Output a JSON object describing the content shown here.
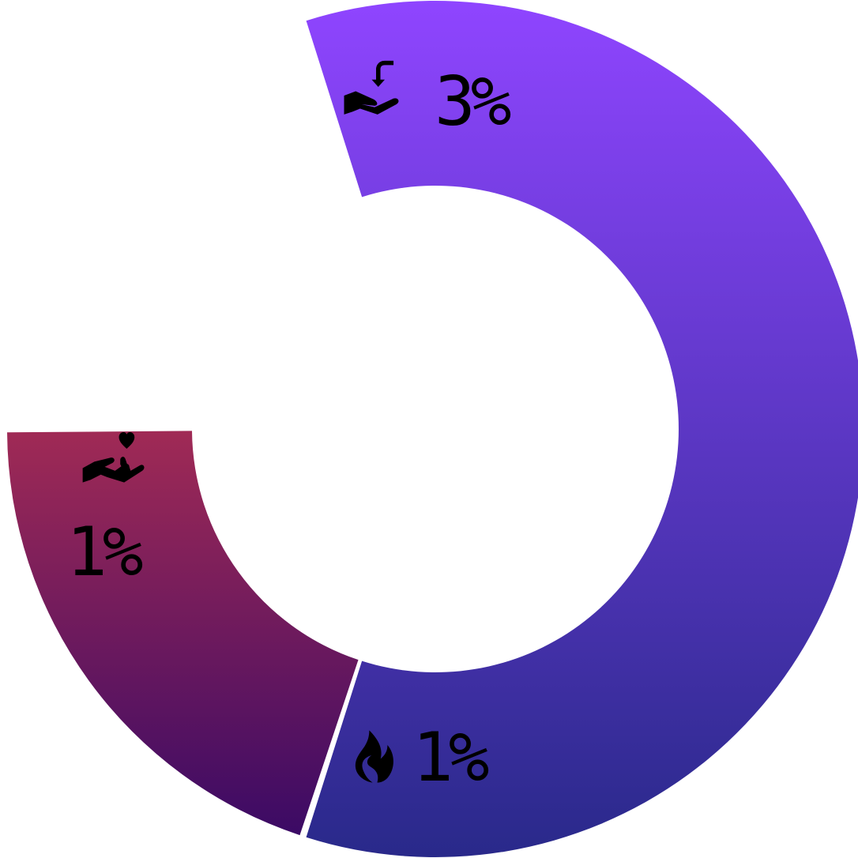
{
  "chart_data": {
    "type": "pie",
    "subtype": "donut",
    "segments": [
      {
        "value": 3,
        "label": "3%",
        "icon": "hand-receiving-return-icon",
        "color_top": "#8f45ff",
        "color_bottom": "#29298a"
      },
      {
        "value": 1,
        "label": "1%",
        "icon": "flame-icon",
        "color_top": "#a02a55",
        "color_bottom": "#3b0a65"
      },
      {
        "value": 1,
        "label": "1%",
        "icon": "hand-giving-heart-icon",
        "color_top": "#ffffff",
        "color_bottom": "#ffffff"
      }
    ],
    "separator_color": "#ffffff",
    "background": "#ffffff"
  }
}
